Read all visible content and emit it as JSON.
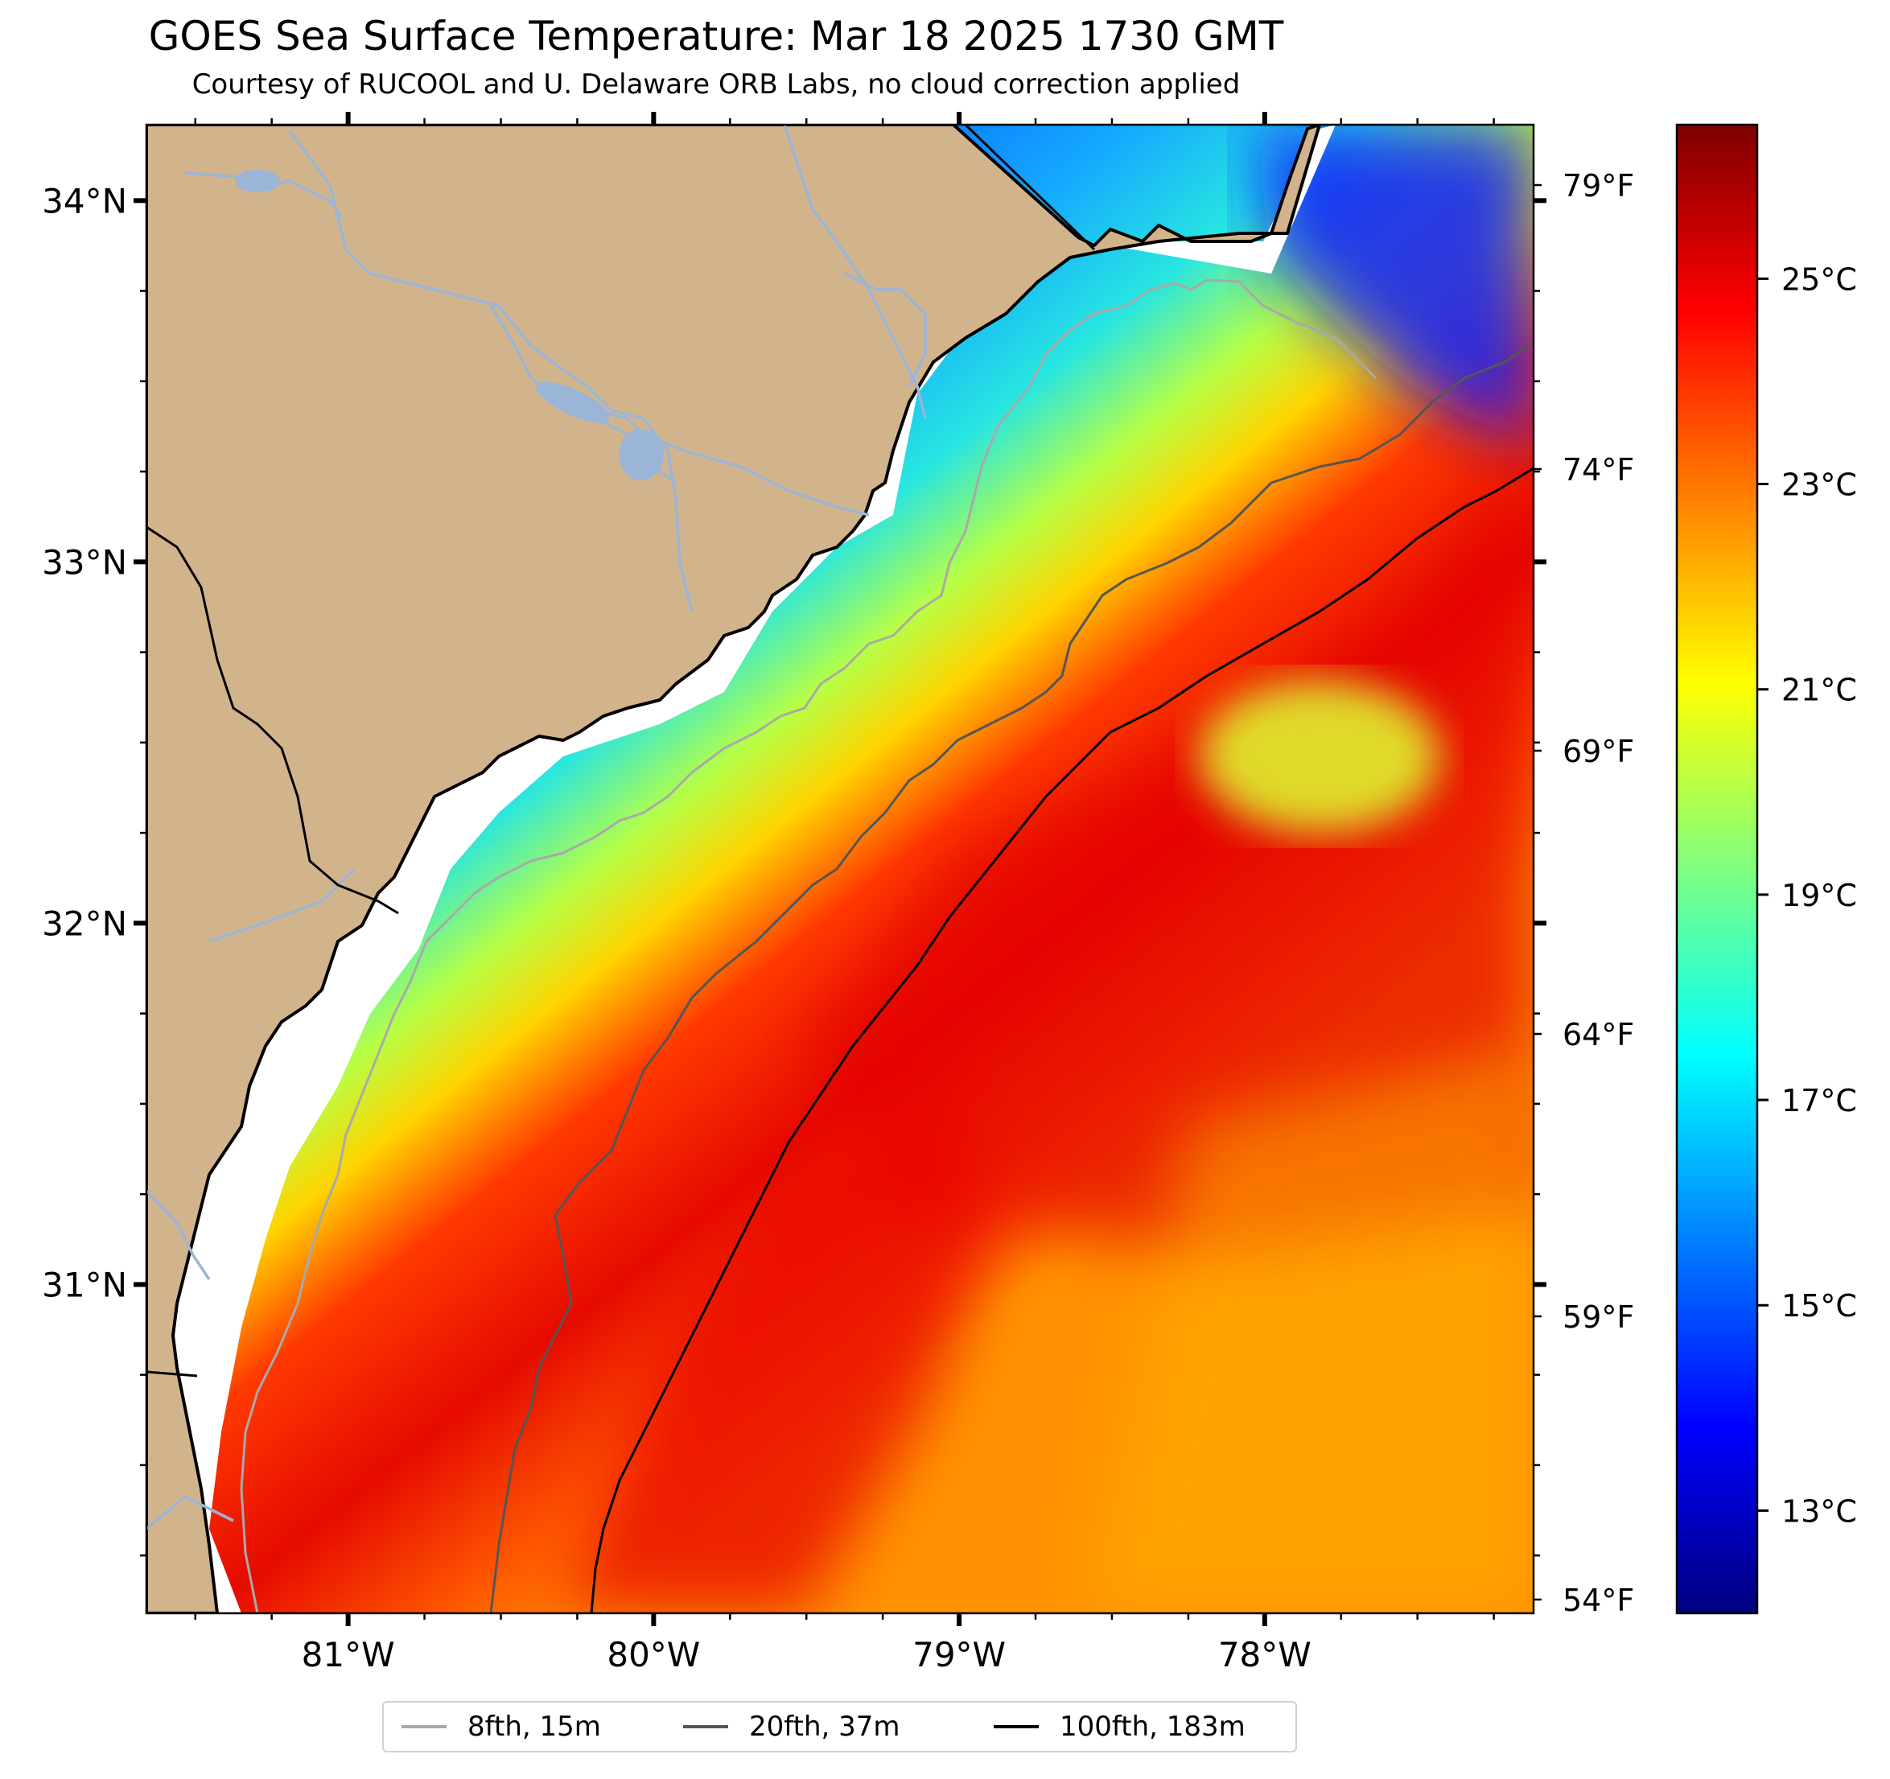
{
  "title": "GOES Sea Surface Temperature: Mar 18 2025 1730 GMT",
  "subtitle": "Courtesy of RUCOOL and U. Delaware ORB Labs, no cloud correction applied",
  "map": {
    "lon_range": [
      -81.66,
      -77.12
    ],
    "lat_range": [
      30.09,
      34.21
    ],
    "lon_ticks": [
      {
        "value": -81,
        "label": "81°W"
      },
      {
        "value": -80,
        "label": "80°W"
      },
      {
        "value": -79,
        "label": "79°W"
      },
      {
        "value": -78,
        "label": "78°W"
      }
    ],
    "lat_ticks": [
      {
        "value": 34,
        "label": "34°N"
      },
      {
        "value": 33,
        "label": "33°N"
      },
      {
        "value": 32,
        "label": "32°N"
      },
      {
        "value": 31,
        "label": "31°N"
      }
    ],
    "fahrenheit_ticks": [
      {
        "value": 79,
        "label": "79°F"
      },
      {
        "value": 74,
        "label": "74°F"
      },
      {
        "value": 69,
        "label": "69°F"
      },
      {
        "value": 64,
        "label": "64°F"
      },
      {
        "value": 59,
        "label": "59°F"
      },
      {
        "value": 54,
        "label": "54°F"
      }
    ],
    "colors": {
      "land": "#d2b48c",
      "rivers": "#9bb5d6",
      "coast": "#000000",
      "nodata": "#ffffff"
    }
  },
  "colorbar": {
    "min_c": 12,
    "max_c": 26.5,
    "ticks": [
      {
        "value": 25,
        "label": "25°C"
      },
      {
        "value": 23,
        "label": "23°C"
      },
      {
        "value": 21,
        "label": "21°C"
      },
      {
        "value": 19,
        "label": "19°C"
      },
      {
        "value": 17,
        "label": "17°C"
      },
      {
        "value": 15,
        "label": "15°C"
      },
      {
        "value": 13,
        "label": "13°C"
      }
    ],
    "colormap": [
      "#00007f",
      "#0000ff",
      "#007fff",
      "#00ffff",
      "#7fff7f",
      "#ffff00",
      "#ff7f00",
      "#ff0000",
      "#7f0000"
    ]
  },
  "legend": [
    {
      "label": "8fth, 15m",
      "color": "#a9a9a9"
    },
    {
      "label": "20fth, 37m",
      "color": "#555555"
    },
    {
      "label": "100fth, 183m",
      "color": "#000000"
    }
  ]
}
